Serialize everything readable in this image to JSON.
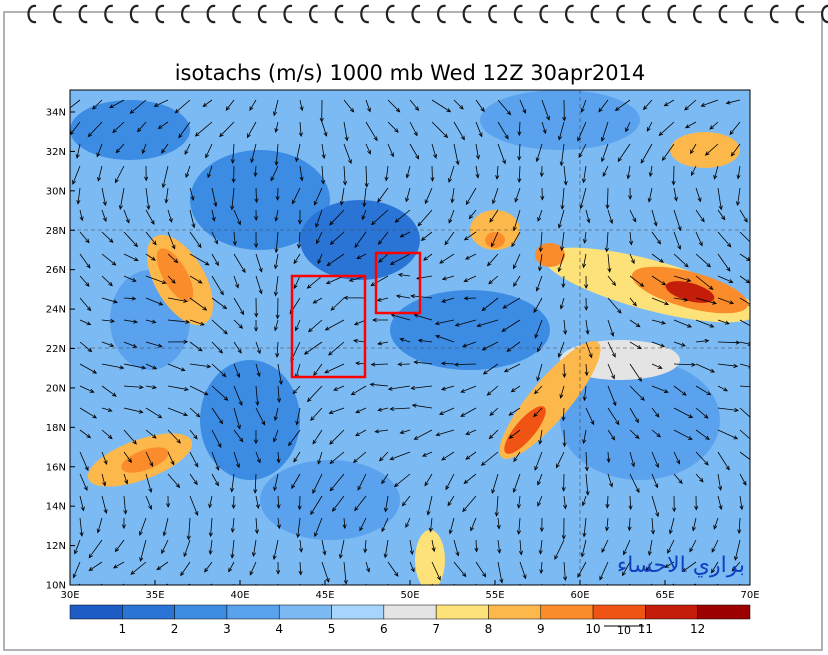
{
  "title": "isotachs (m/s) 1000 mb Wed 12Z 30apr2014",
  "lat_labels": [
    "34N",
    "32N",
    "30N",
    "28N",
    "26N",
    "24N",
    "22N",
    "20N",
    "18N",
    "16N",
    "14N",
    "12N",
    "10N"
  ],
  "lon_labels": [
    "30E",
    "35E",
    "40E",
    "45E",
    "50E",
    "55E",
    "60E",
    "65E",
    "70E"
  ],
  "colorbar": {
    "colors": [
      "#1c5cc4",
      "#2a74d6",
      "#3c8ce4",
      "#5aa2ee",
      "#7cbaf4",
      "#a6d4fa",
      "#e4e4e4",
      "#fde27a",
      "#fdb84c",
      "#fb8c2c",
      "#f05414",
      "#c41e0a",
      "#9c0000"
    ],
    "labels": [
      1,
      2,
      3,
      4,
      5,
      6,
      7,
      8,
      9,
      10,
      11,
      12
    ]
  },
  "reference_vector": "10",
  "watermark": "براري الاحساء"
}
